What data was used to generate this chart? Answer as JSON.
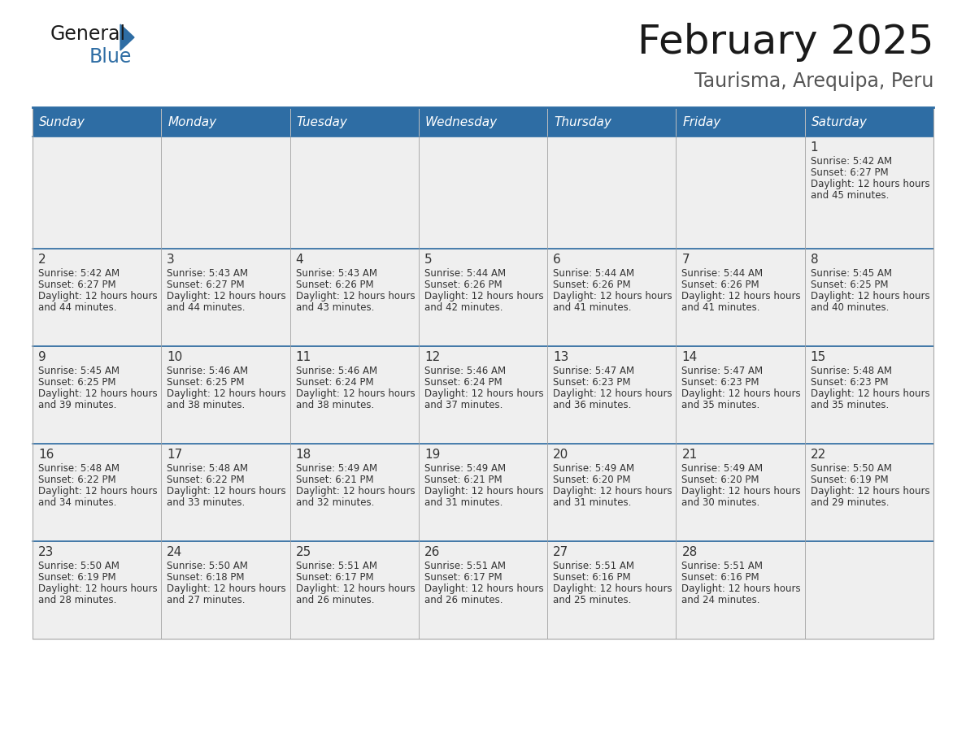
{
  "title": "February 2025",
  "subtitle": "Taurisma, Arequipa, Peru",
  "header_bg": "#2E6DA4",
  "header_text": "#FFFFFF",
  "cell_bg_light": "#EFEFEF",
  "cell_bg_white": "#FFFFFF",
  "border_color": "#AAAAAA",
  "row_line_color": "#2E6DA4",
  "day_names": [
    "Sunday",
    "Monday",
    "Tuesday",
    "Wednesday",
    "Thursday",
    "Friday",
    "Saturday"
  ],
  "calendar": [
    [
      {
        "day": "",
        "sunrise": "",
        "sunset": "",
        "daylight": ""
      },
      {
        "day": "",
        "sunrise": "",
        "sunset": "",
        "daylight": ""
      },
      {
        "day": "",
        "sunrise": "",
        "sunset": "",
        "daylight": ""
      },
      {
        "day": "",
        "sunrise": "",
        "sunset": "",
        "daylight": ""
      },
      {
        "day": "",
        "sunrise": "",
        "sunset": "",
        "daylight": ""
      },
      {
        "day": "",
        "sunrise": "",
        "sunset": "",
        "daylight": ""
      },
      {
        "day": "1",
        "sunrise": "5:42 AM",
        "sunset": "6:27 PM",
        "daylight": "12 hours and 45 minutes."
      }
    ],
    [
      {
        "day": "2",
        "sunrise": "5:42 AM",
        "sunset": "6:27 PM",
        "daylight": "12 hours and 44 minutes."
      },
      {
        "day": "3",
        "sunrise": "5:43 AM",
        "sunset": "6:27 PM",
        "daylight": "12 hours and 44 minutes."
      },
      {
        "day": "4",
        "sunrise": "5:43 AM",
        "sunset": "6:26 PM",
        "daylight": "12 hours and 43 minutes."
      },
      {
        "day": "5",
        "sunrise": "5:44 AM",
        "sunset": "6:26 PM",
        "daylight": "12 hours and 42 minutes."
      },
      {
        "day": "6",
        "sunrise": "5:44 AM",
        "sunset": "6:26 PM",
        "daylight": "12 hours and 41 minutes."
      },
      {
        "day": "7",
        "sunrise": "5:44 AM",
        "sunset": "6:26 PM",
        "daylight": "12 hours and 41 minutes."
      },
      {
        "day": "8",
        "sunrise": "5:45 AM",
        "sunset": "6:25 PM",
        "daylight": "12 hours and 40 minutes."
      }
    ],
    [
      {
        "day": "9",
        "sunrise": "5:45 AM",
        "sunset": "6:25 PM",
        "daylight": "12 hours and 39 minutes."
      },
      {
        "day": "10",
        "sunrise": "5:46 AM",
        "sunset": "6:25 PM",
        "daylight": "12 hours and 38 minutes."
      },
      {
        "day": "11",
        "sunrise": "5:46 AM",
        "sunset": "6:24 PM",
        "daylight": "12 hours and 38 minutes."
      },
      {
        "day": "12",
        "sunrise": "5:46 AM",
        "sunset": "6:24 PM",
        "daylight": "12 hours and 37 minutes."
      },
      {
        "day": "13",
        "sunrise": "5:47 AM",
        "sunset": "6:23 PM",
        "daylight": "12 hours and 36 minutes."
      },
      {
        "day": "14",
        "sunrise": "5:47 AM",
        "sunset": "6:23 PM",
        "daylight": "12 hours and 35 minutes."
      },
      {
        "day": "15",
        "sunrise": "5:48 AM",
        "sunset": "6:23 PM",
        "daylight": "12 hours and 35 minutes."
      }
    ],
    [
      {
        "day": "16",
        "sunrise": "5:48 AM",
        "sunset": "6:22 PM",
        "daylight": "12 hours and 34 minutes."
      },
      {
        "day": "17",
        "sunrise": "5:48 AM",
        "sunset": "6:22 PM",
        "daylight": "12 hours and 33 minutes."
      },
      {
        "day": "18",
        "sunrise": "5:49 AM",
        "sunset": "6:21 PM",
        "daylight": "12 hours and 32 minutes."
      },
      {
        "day": "19",
        "sunrise": "5:49 AM",
        "sunset": "6:21 PM",
        "daylight": "12 hours and 31 minutes."
      },
      {
        "day": "20",
        "sunrise": "5:49 AM",
        "sunset": "6:20 PM",
        "daylight": "12 hours and 31 minutes."
      },
      {
        "day": "21",
        "sunrise": "5:49 AM",
        "sunset": "6:20 PM",
        "daylight": "12 hours and 30 minutes."
      },
      {
        "day": "22",
        "sunrise": "5:50 AM",
        "sunset": "6:19 PM",
        "daylight": "12 hours and 29 minutes."
      }
    ],
    [
      {
        "day": "23",
        "sunrise": "5:50 AM",
        "sunset": "6:19 PM",
        "daylight": "12 hours and 28 minutes."
      },
      {
        "day": "24",
        "sunrise": "5:50 AM",
        "sunset": "6:18 PM",
        "daylight": "12 hours and 27 minutes."
      },
      {
        "day": "25",
        "sunrise": "5:51 AM",
        "sunset": "6:17 PM",
        "daylight": "12 hours and 26 minutes."
      },
      {
        "day": "26",
        "sunrise": "5:51 AM",
        "sunset": "6:17 PM",
        "daylight": "12 hours and 26 minutes."
      },
      {
        "day": "27",
        "sunrise": "5:51 AM",
        "sunset": "6:16 PM",
        "daylight": "12 hours and 25 minutes."
      },
      {
        "day": "28",
        "sunrise": "5:51 AM",
        "sunset": "6:16 PM",
        "daylight": "12 hours and 24 minutes."
      },
      {
        "day": "",
        "sunrise": "",
        "sunset": "",
        "daylight": ""
      }
    ]
  ]
}
